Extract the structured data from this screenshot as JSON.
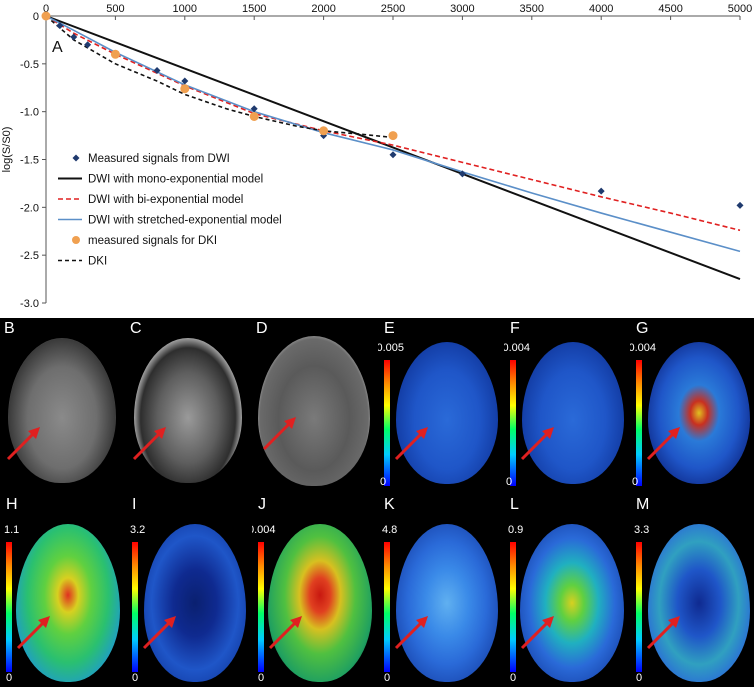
{
  "chart_data": {
    "type": "line",
    "panel_label": "A",
    "ylabel": "log(S/S0)",
    "xlabel": "",
    "x_ticks": [
      "0",
      "500",
      "1000",
      "1500",
      "2000",
      "2500",
      "3000",
      "3500",
      "4000",
      "4500",
      "5000"
    ],
    "y_ticks": [
      "0",
      "-0.5",
      "-1.0",
      "-1.5",
      "-2.0",
      "-2.5",
      "-3.0"
    ],
    "xlim": [
      0,
      5000
    ],
    "ylim": [
      -3.0,
      0
    ],
    "legend_position": "lower-left",
    "colors": {
      "measured_dwi": "#1f3a6e",
      "mono": "#111111",
      "bi": "#e02020",
      "stretched": "#5b8fc8",
      "measured_dki": "#f0a050",
      "dki": "#111111"
    },
    "series": [
      {
        "name": "Measured signals from DWI",
        "style": "marker-diamond",
        "x": [
          0,
          100,
          200,
          300,
          500,
          800,
          1000,
          1500,
          2000,
          2500,
          3000,
          4000,
          5000
        ],
        "y": [
          0,
          -0.1,
          -0.22,
          -0.3,
          -0.4,
          -0.57,
          -0.68,
          -0.97,
          -1.25,
          -1.45,
          -1.65,
          -1.83,
          -1.98
        ]
      },
      {
        "name": "DWI with mono-exponential model",
        "style": "solid",
        "x": [
          0,
          5000
        ],
        "y": [
          0,
          -2.75
        ]
      },
      {
        "name": "DWI with bi-exponential model",
        "style": "dashed",
        "x": [
          0,
          200,
          500,
          1000,
          1500,
          2000,
          2500,
          3000,
          3500,
          4000,
          4500,
          5000
        ],
        "y": [
          0,
          -0.18,
          -0.4,
          -0.73,
          -1.02,
          -1.2,
          -1.35,
          -1.53,
          -1.71,
          -1.89,
          -2.06,
          -2.24
        ]
      },
      {
        "name": "DWI with stretched-exponential model",
        "style": "solid",
        "x": [
          0,
          200,
          500,
          1000,
          1500,
          2000,
          2500,
          3000,
          3500,
          4000,
          4500,
          5000
        ],
        "y": [
          0,
          -0.15,
          -0.38,
          -0.72,
          -1.0,
          -1.22,
          -1.4,
          -1.63,
          -1.85,
          -2.06,
          -2.26,
          -2.46
        ]
      },
      {
        "name": "measured signals for DKI",
        "style": "marker-circle",
        "x": [
          0,
          500,
          1000,
          1500,
          2000,
          2500
        ],
        "y": [
          0,
          -0.4,
          -0.76,
          -1.05,
          -1.2,
          -1.25
        ]
      },
      {
        "name": "DKI",
        "style": "dotted",
        "x": [
          0,
          200,
          500,
          800,
          1000,
          1300,
          1500,
          1800,
          2000,
          2300,
          2500
        ],
        "y": [
          0,
          -0.25,
          -0.5,
          -0.68,
          -0.82,
          -0.97,
          -1.05,
          -1.15,
          -1.2,
          -1.24,
          -1.27
        ]
      }
    ]
  },
  "images": [
    {
      "label": "B"
    },
    {
      "label": "C"
    },
    {
      "label": "D"
    },
    {
      "label": "E",
      "cbar_max": "0.005",
      "cbar_min": "0"
    },
    {
      "label": "F",
      "cbar_max": "0.004",
      "cbar_min": "0"
    },
    {
      "label": "G",
      "cbar_max": "0.004",
      "cbar_min": "0"
    },
    {
      "label": "H",
      "cbar_max": "1.1",
      "cbar_min": "0"
    },
    {
      "label": "I",
      "cbar_max": "3.2",
      "cbar_min": "0"
    },
    {
      "label": "J",
      "cbar_max": "0.004",
      "cbar_min": "0"
    },
    {
      "label": "K",
      "cbar_max": "4.8",
      "cbar_min": "0"
    },
    {
      "label": "L",
      "cbar_max": "0.9",
      "cbar_min": "0"
    },
    {
      "label": "M",
      "cbar_max": "3.3",
      "cbar_min": "0"
    }
  ]
}
